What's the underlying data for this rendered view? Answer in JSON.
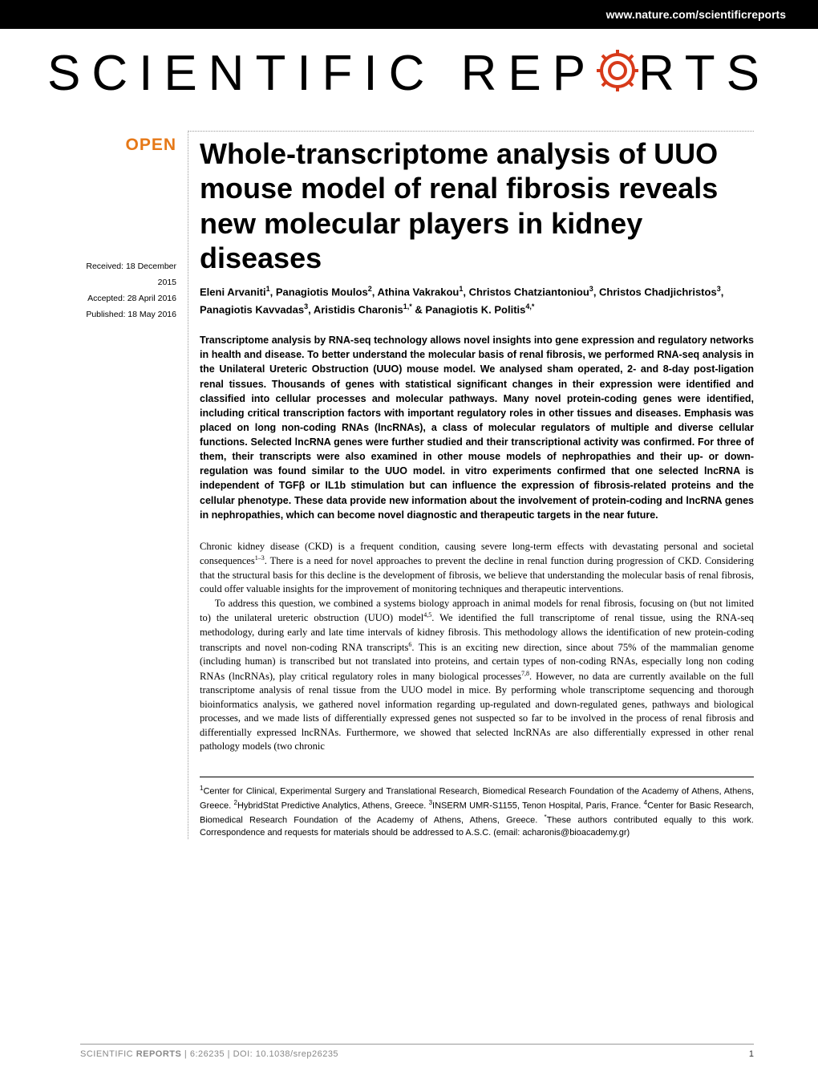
{
  "header": {
    "url": "www.nature.com/scientificreports"
  },
  "journal": {
    "name_part1": "SCIENTIFIC",
    "name_part2": "REP",
    "name_part3": "RTS",
    "gear_color": "#d73a1a"
  },
  "badge": {
    "open": "OPEN"
  },
  "dates": {
    "received": "Received: 18 December 2015",
    "accepted": "Accepted: 28 April 2016",
    "published": "Published: 18 May 2016"
  },
  "title": "Whole-transcriptome analysis of UUO mouse model of renal fibrosis reveals new molecular players in kidney diseases",
  "authors_html": "Eleni Arvaniti<sup>1</sup>, Panagiotis Moulos<sup>2</sup>, Athina Vakrakou<sup>1</sup>, Christos Chatziantoniou<sup>3</sup>, Christos Chadjichristos<sup>3</sup>, Panagiotis Kavvadas<sup>3</sup>, Aristidis Charonis<sup>1,*</sup> & Panagiotis K. Politis<sup>4,*</sup>",
  "abstract": "Transcriptome analysis by RNA-seq technology allows novel insights into gene expression and regulatory networks in health and disease. To better understand the molecular basis of renal fibrosis, we performed RNA-seq analysis in the Unilateral Ureteric Obstruction (UUO) mouse model. We analysed sham operated, 2- and 8-day post-ligation renal tissues. Thousands of genes with statistical significant changes in their expression were identified and classified into cellular processes and molecular pathways. Many novel protein-coding genes were identified, including critical transcription factors with important regulatory roles in other tissues and diseases. Emphasis was placed on long non-coding RNAs (lncRNAs), a class of molecular regulators of multiple and diverse cellular functions. Selected lncRNA genes were further studied and their transcriptional activity was confirmed. For three of them, their transcripts were also examined in other mouse models of nephropathies and their up- or down-regulation was found similar to the UUO model. in vitro experiments confirmed that one selected lncRNA is independent of TGFβ or IL1b stimulation but can influence the expression of fibrosis-related proteins and the cellular phenotype. These data provide new information about the involvement of protein-coding and lncRNA genes in nephropathies, which can become novel diagnostic and therapeutic targets in the near future.",
  "body_p1": "Chronic kidney disease (CKD) is a frequent condition, causing severe long-term effects with devastating personal and societal consequences<sup>1–3</sup>. There is a need for novel approaches to prevent the decline in renal function during progression of CKD. Considering that the structural basis for this decline is the development of fibrosis, we believe that understanding the molecular basis of renal fibrosis, could offer valuable insights for the improvement of monitoring techniques and therapeutic interventions.",
  "body_p2": "To address this question, we combined a systems biology approach in animal models for renal fibrosis, focusing on (but not limited to) the unilateral ureteric obstruction (UUO) model<sup>4,5</sup>. We identified the full transcriptome of renal tissue, using the RNA-seq methodology, during early and late time intervals of kidney fibrosis. This methodology allows the identification of new protein-coding transcripts and novel non-coding RNA transcripts<sup>6</sup>. This is an exciting new direction, since about 75% of the mammalian genome (including human) is transcribed but not translated into proteins, and certain types of non-coding RNAs, especially long non coding RNAs (lncRNAs), play critical regulatory roles in many biological processes<sup>7,8</sup>. However, no data are currently available on the full transcriptome analysis of renal tissue from the UUO model in mice. By performing whole transcriptome sequencing and thorough bioinformatics analysis, we gathered novel information regarding up-regulated and down-regulated genes, pathways and biological processes, and we made lists of differentially expressed genes not suspected so far to be involved in the process of renal fibrosis and differentially expressed lncRNAs. Furthermore, we showed that selected lncRNAs are also differentially expressed in other renal pathology models (two chronic",
  "affiliations": "<sup>1</sup>Center for Clinical, Experimental Surgery and Translational Research, Biomedical Research Foundation of the Academy of Athens, Athens, Greece. <sup>2</sup>HybridStat Predictive Analytics, Athens, Greece. <sup>3</sup>INSERM UMR-S1155, Tenon Hospital, Paris, France. <sup>4</sup>Center for Basic Research, Biomedical Research Foundation of the Academy of Athens, Athens, Greece. <sup>*</sup>These authors contributed equally to this work. Correspondence and requests for materials should be addressed to A.S.C. (email: acharonis@bioacademy.gr)",
  "footer": {
    "journal_label": "SCIENTIFIC",
    "reports_label": "REPORTS",
    "citation": " | 6:26235 | DOI: 10.1038/srep26235",
    "page": "1"
  }
}
